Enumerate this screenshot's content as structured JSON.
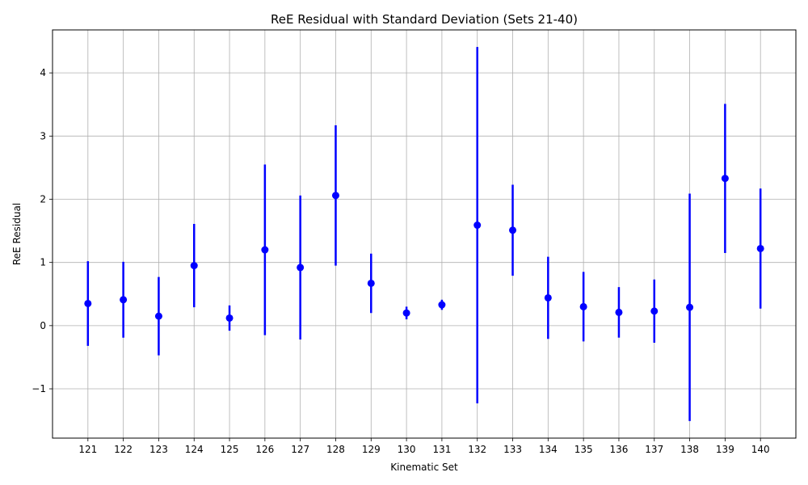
{
  "chart_data": {
    "type": "scatter",
    "title": "ReE Residual with Standard Deviation (Sets 21-40)",
    "xlabel": "Kinematic Set",
    "ylabel": "ReE Residual",
    "categories": [
      "121",
      "122",
      "123",
      "124",
      "125",
      "126",
      "127",
      "128",
      "129",
      "130",
      "131",
      "132",
      "133",
      "134",
      "135",
      "136",
      "137",
      "138",
      "139",
      "140"
    ],
    "series": [
      {
        "values": [
          0.35,
          0.41,
          0.15,
          0.95,
          0.12,
          1.2,
          0.92,
          2.06,
          0.67,
          0.2,
          0.33,
          1.59,
          1.51,
          0.44,
          0.3,
          0.21,
          0.23,
          0.29,
          2.33,
          1.22
        ],
        "errors": [
          0.67,
          0.6,
          0.62,
          0.66,
          0.2,
          1.35,
          1.14,
          1.11,
          0.47,
          0.1,
          0.08,
          2.82,
          0.72,
          0.65,
          0.55,
          0.4,
          0.5,
          1.8,
          1.18,
          0.95
        ],
        "color": "#0000ff"
      }
    ],
    "ylim": [
      -1.78,
      4.68
    ],
    "yticks": [
      -1,
      0,
      1,
      2,
      3,
      4
    ],
    "yticklabels": [
      "−1",
      "0",
      "1",
      "2",
      "3",
      "4"
    ],
    "grid": true,
    "legend": false
  }
}
